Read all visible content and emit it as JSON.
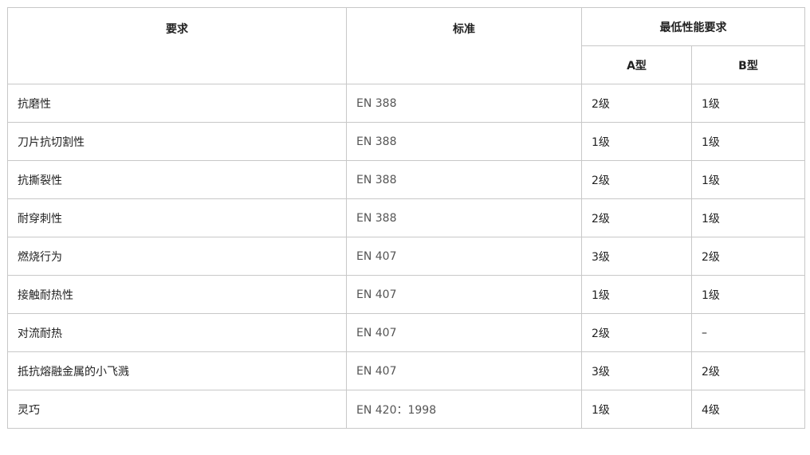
{
  "table": {
    "headers": {
      "requirement": "要求",
      "standard": "标准",
      "min_performance": "最低性能要求",
      "type_a": "A型",
      "type_b": "B型"
    },
    "rows": [
      {
        "requirement": "抗磨性",
        "standard": "EN 388",
        "a": "2级",
        "b": "1级"
      },
      {
        "requirement": "刀片抗切割性",
        "standard": "EN 388",
        "a": "1级",
        "b": "1级"
      },
      {
        "requirement": "抗撕裂性",
        "standard": "EN 388",
        "a": "2级",
        "b": "1级"
      },
      {
        "requirement": "耐穿刺性",
        "standard": "EN 388",
        "a": "2级",
        "b": "1级"
      },
      {
        "requirement": "燃烧行为",
        "standard": "EN 407",
        "a": "3级",
        "b": "2级"
      },
      {
        "requirement": "接触耐热性",
        "standard": "EN 407",
        "a": "1级",
        "b": "1级"
      },
      {
        "requirement": "对流耐热",
        "standard": "EN 407",
        "a": "2级",
        "b": "–"
      },
      {
        "requirement": "抵抗熔融金属的小飞溅",
        "standard": "EN 407",
        "a": "3级",
        "b": "2级"
      },
      {
        "requirement": "灵巧",
        "standard": "EN 420：1998",
        "a": "1级",
        "b": "4级"
      }
    ]
  }
}
